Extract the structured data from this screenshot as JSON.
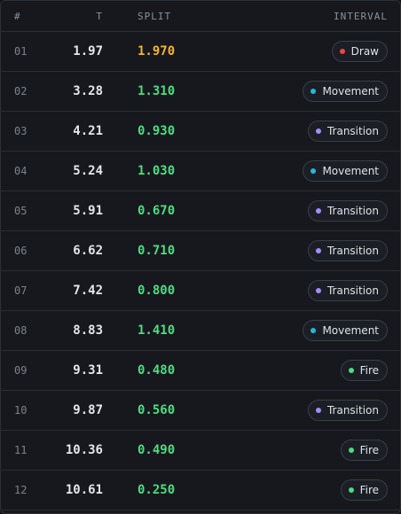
{
  "table": {
    "header": [
      "#",
      "T",
      "SPLIT",
      "INTERVAL"
    ],
    "rows": [
      [
        "01",
        "1.97",
        "1.970",
        "Draw"
      ],
      [
        "02",
        "3.28",
        "1.310",
        "Movement"
      ],
      [
        "03",
        "4.21",
        "0.930",
        "Transition"
      ],
      [
        "04",
        "5.24",
        "1.030",
        "Movement"
      ],
      [
        "05",
        "5.91",
        "0.670",
        "Transition"
      ],
      [
        "06",
        "6.62",
        "0.710",
        "Transition"
      ],
      [
        "07",
        "7.42",
        "0.800",
        "Transition"
      ],
      [
        "08",
        "8.83",
        "1.410",
        "Movement"
      ],
      [
        "09",
        "9.31",
        "0.480",
        "Fire"
      ],
      [
        "10",
        "9.87",
        "0.560",
        "Transition"
      ],
      [
        "11",
        "10.36",
        "0.490",
        "Fire"
      ],
      [
        "12",
        "10.61",
        "0.250",
        "Fire"
      ]
    ],
    "split_colors": [
      "#f5b52e",
      "#4ade80",
      "#4ade80",
      "#4ade80",
      "#4ade80",
      "#4ade80",
      "#4ade80",
      "#4ade80",
      "#4ade80",
      "#4ade80",
      "#4ade80",
      "#4ade80"
    ],
    "interval_colors": {
      "Draw": "#ef4444",
      "Movement": "#22b8d8",
      "Transition": "#a78bfa",
      "Fire": "#4ade80"
    }
  }
}
